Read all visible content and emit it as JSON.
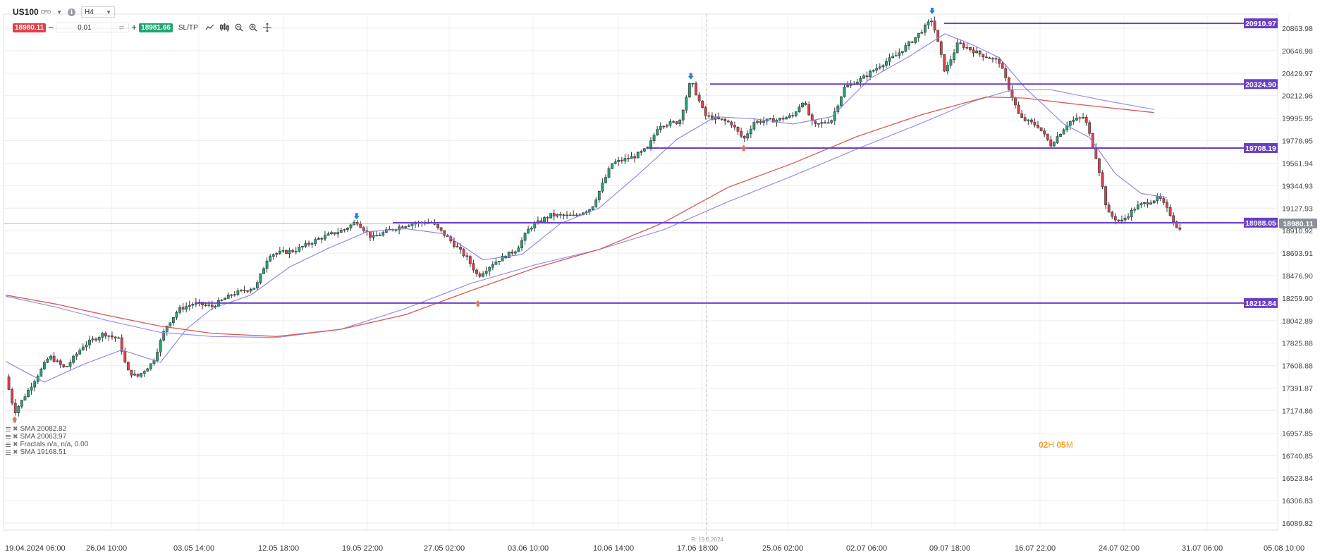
{
  "toolbar": {
    "symbol": "US100",
    "instrument_type": "CFD",
    "timeframe": "H4",
    "sell_price": "18980.11",
    "volume": "0.01",
    "buy_price": "18981.66",
    "sltp_label": "SL/TP",
    "minus": "−",
    "plus": "+"
  },
  "indicators": [
    "SMA 20082.82",
    "SMA 20063.97",
    "Fractals n/a, n/a, 0.00",
    "SMA 19168.51"
  ],
  "timer": {
    "h": "02",
    "h_unit": "H",
    "m": "05",
    "m_unit": "M"
  },
  "session_label": "R: 19.6.2024",
  "colors": {
    "candle_up": "#1fa672",
    "candle_down": "#e04049",
    "candle_body": "#333333",
    "sma_fast": "#8c7ee0",
    "sma_slow": "#d65a55",
    "sma_mid": "#9b8fe6",
    "level_line": "#6a3fc4",
    "price_tag": "#6a3fc4",
    "current_tag": "#8a9099",
    "fractal_up": "#2b7de0",
    "fractal_down": "#e2735f",
    "timer": "#f0a033"
  },
  "chart_data": {
    "type": "candlestick",
    "symbol": "US100",
    "timeframe": "H4",
    "y_axis_ticks": [
      20863.98,
      20646.98,
      20429.97,
      20212.96,
      19995.95,
      19778.95,
      19561.94,
      19344.93,
      19127.93,
      18910.92,
      18693.91,
      18476.9,
      18259.9,
      18042.89,
      17825.88,
      17608.88,
      17391.87,
      17174.86,
      16957.85,
      16740.85,
      16523.84,
      16306.83,
      16089.82
    ],
    "x_axis_labels": [
      "19.04.2024 06:00",
      "26.04 10:00",
      "03.05 14:00",
      "12.05 18:00",
      "19.05 22:00",
      "27.05 02:00",
      "03.06 10:00",
      "10.06 14:00",
      "17.06 18:00",
      "25.06 02:00",
      "02.07 06:00",
      "09.07 18:00",
      "16.07 22:00",
      "24.07 02:00",
      "31.07 06:00",
      "05.08 10:00"
    ],
    "y_range": [
      16000,
      21100
    ],
    "horizontal_levels": [
      {
        "label": "20910.97",
        "value": 20910.97
      },
      {
        "label": "20324.90",
        "value": 20324.9
      },
      {
        "label": "19708.19",
        "value": 19708.19
      },
      {
        "label": "18988.05",
        "value": 18988.05
      },
      {
        "label": "18212.84",
        "value": 18212.84
      }
    ],
    "current_price": {
      "label": "18980.11",
      "value": 18980.11
    },
    "price_path": [
      [
        0.0,
        17500
      ],
      [
        0.7,
        17160
      ],
      [
        2.2,
        17460
      ],
      [
        3.4,
        17700
      ],
      [
        4.6,
        17580
      ],
      [
        6.0,
        17800
      ],
      [
        7.6,
        17920
      ],
      [
        8.8,
        17860
      ],
      [
        9.4,
        17560
      ],
      [
        10.2,
        17500
      ],
      [
        11.4,
        17640
      ],
      [
        12.4,
        17980
      ],
      [
        13.4,
        18150
      ],
      [
        14.6,
        18210
      ],
      [
        16.0,
        18180
      ],
      [
        17.6,
        18300
      ],
      [
        19.4,
        18370
      ],
      [
        20.4,
        18680
      ],
      [
        22.4,
        18720
      ],
      [
        24.4,
        18840
      ],
      [
        26.2,
        18920
      ],
      [
        27.2,
        19000
      ],
      [
        28.4,
        18840
      ],
      [
        29.8,
        18920
      ],
      [
        31.4,
        18980
      ],
      [
        33.0,
        18990
      ],
      [
        34.2,
        18850
      ],
      [
        35.8,
        18640
      ],
      [
        36.6,
        18470
      ],
      [
        37.8,
        18600
      ],
      [
        39.6,
        18730
      ],
      [
        40.6,
        18940
      ],
      [
        42.2,
        19060
      ],
      [
        44.0,
        19050
      ],
      [
        45.4,
        19130
      ],
      [
        47.0,
        19560
      ],
      [
        48.8,
        19630
      ],
      [
        49.8,
        19710
      ],
      [
        50.6,
        19930
      ],
      [
        52.2,
        19960
      ],
      [
        53.1,
        20360
      ],
      [
        54.2,
        20020
      ],
      [
        56.2,
        19950
      ],
      [
        57.2,
        19790
      ],
      [
        58.0,
        19960
      ],
      [
        59.8,
        19980
      ],
      [
        61.0,
        20020
      ],
      [
        61.8,
        20170
      ],
      [
        62.6,
        19920
      ],
      [
        64.0,
        19980
      ],
      [
        65.0,
        20290
      ],
      [
        66.4,
        20380
      ],
      [
        67.8,
        20510
      ],
      [
        69.0,
        20600
      ],
      [
        70.4,
        20760
      ],
      [
        71.8,
        20950
      ],
      [
        72.8,
        20440
      ],
      [
        73.8,
        20720
      ],
      [
        75.4,
        20620
      ],
      [
        77.0,
        20540
      ],
      [
        78.6,
        20000
      ],
      [
        80.0,
        19920
      ],
      [
        81.0,
        19740
      ],
      [
        82.4,
        19960
      ],
      [
        83.6,
        20010
      ],
      [
        84.6,
        19580
      ],
      [
        85.4,
        19080
      ],
      [
        86.4,
        18990
      ],
      [
        87.6,
        19140
      ],
      [
        89.4,
        19230
      ],
      [
        90.2,
        19080
      ],
      [
        90.9,
        18920
      ]
    ],
    "sma_fast_path": [
      [
        0.0,
        17650
      ],
      [
        3.0,
        17450
      ],
      [
        6.0,
        17620
      ],
      [
        9.0,
        17760
      ],
      [
        12.0,
        17640
      ],
      [
        14.0,
        17960
      ],
      [
        16.0,
        18160
      ],
      [
        19.0,
        18290
      ],
      [
        22.0,
        18560
      ],
      [
        25.0,
        18740
      ],
      [
        28.0,
        18900
      ],
      [
        31.0,
        18930
      ],
      [
        34.0,
        18880
      ],
      [
        37.0,
        18630
      ],
      [
        40.0,
        18680
      ],
      [
        43.0,
        18980
      ],
      [
        46.0,
        19130
      ],
      [
        49.0,
        19450
      ],
      [
        52.0,
        19790
      ],
      [
        55.0,
        20010
      ],
      [
        58.0,
        19990
      ],
      [
        61.0,
        19940
      ],
      [
        64.0,
        20010
      ],
      [
        67.0,
        20380
      ],
      [
        70.0,
        20590
      ],
      [
        72.8,
        20810
      ],
      [
        75.0,
        20700
      ],
      [
        77.0,
        20580
      ],
      [
        79.0,
        20290
      ],
      [
        82.0,
        19940
      ],
      [
        84.0,
        19810
      ],
      [
        86.0,
        19460
      ],
      [
        88.0,
        19270
      ],
      [
        90.0,
        19230
      ]
    ],
    "sma_mid_path": [
      [
        0.0,
        18280
      ],
      [
        4.0,
        18170
      ],
      [
        8.0,
        18040
      ],
      [
        12.0,
        17930
      ],
      [
        16.0,
        17890
      ],
      [
        21.0,
        17880
      ],
      [
        26.0,
        17960
      ],
      [
        31.0,
        18160
      ],
      [
        36.0,
        18400
      ],
      [
        41.0,
        18580
      ],
      [
        46.0,
        18730
      ],
      [
        51.0,
        18920
      ],
      [
        56.0,
        19190
      ],
      [
        61.0,
        19440
      ],
      [
        66.0,
        19700
      ],
      [
        71.0,
        19950
      ],
      [
        75.0,
        20160
      ],
      [
        78.0,
        20270
      ],
      [
        81.0,
        20270
      ],
      [
        85.0,
        20170
      ],
      [
        89.0,
        20080
      ]
    ],
    "sma_slow_path": [
      [
        0.0,
        18290
      ],
      [
        4.0,
        18200
      ],
      [
        8.0,
        18090
      ],
      [
        12.0,
        17990
      ],
      [
        16.0,
        17920
      ],
      [
        21.0,
        17890
      ],
      [
        26.0,
        17960
      ],
      [
        31.0,
        18100
      ],
      [
        36.0,
        18330
      ],
      [
        41.0,
        18550
      ],
      [
        46.0,
        18730
      ],
      [
        51.0,
        18990
      ],
      [
        56.0,
        19330
      ],
      [
        61.0,
        19560
      ],
      [
        66.0,
        19820
      ],
      [
        71.0,
        20030
      ],
      [
        76.0,
        20200
      ],
      [
        79.0,
        20190
      ],
      [
        83.0,
        20130
      ],
      [
        89.0,
        20050
      ]
    ],
    "fractals_up": [
      [
        27.2,
        19040
      ],
      [
        53.1,
        20390
      ],
      [
        71.8,
        21020
      ]
    ],
    "fractals_down": [
      [
        0.7,
        17100
      ],
      [
        36.6,
        18220
      ],
      [
        57.2,
        19720
      ]
    ]
  }
}
